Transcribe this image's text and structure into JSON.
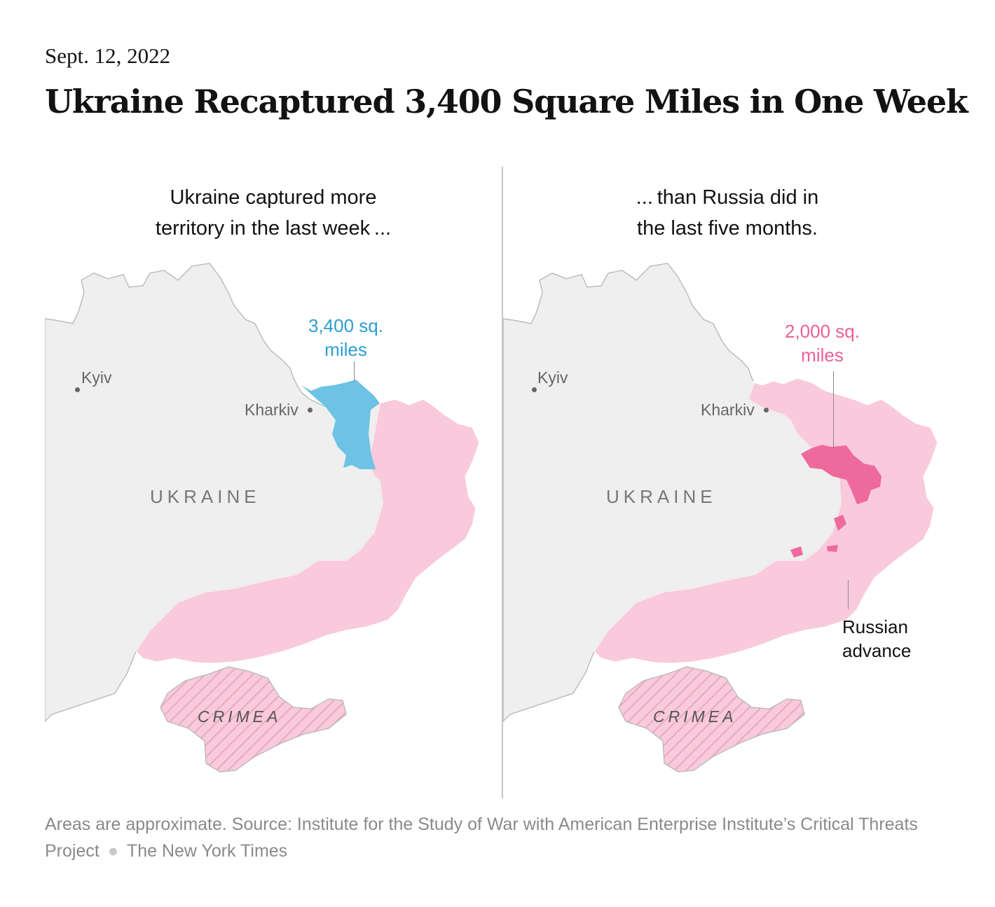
{
  "dateline": "Sept. 12, 2022",
  "headline": "Ukraine Recaptured 3,400 Square Miles in One Week",
  "left_panel": {
    "title_line1": "Ukraine captured more",
    "title_line2": "territory in the last week ...",
    "callout_line1": "3,400 sq.",
    "callout_line2": "miles",
    "callout_color": "#2a9fd0"
  },
  "right_panel": {
    "title_line1": "... than Russia did in",
    "title_line2": "the last five months.",
    "callout_line1": "2,000 sq.",
    "callout_line2": "miles",
    "callout_color": "#ec5f95",
    "advance_line1": "Russian",
    "advance_line2": "advance"
  },
  "map_labels": {
    "kyiv": "Kyiv",
    "kharkiv": "Kharkiv",
    "country": "UKRAINE",
    "crimea": "CRIMEA"
  },
  "colors": {
    "ukraine_land": "#efefef",
    "russian_controlled": "#f9cadb",
    "ukraine_recaptured": "#6cc3e3",
    "russian_advance": "#ef6a9c",
    "border": "#bdbdbd"
  },
  "footer": {
    "note": "Areas are approximate. Source: Institute for the Study of War with American Enterprise Institute’s Critical Threats Project",
    "credit": "The New York Times"
  }
}
